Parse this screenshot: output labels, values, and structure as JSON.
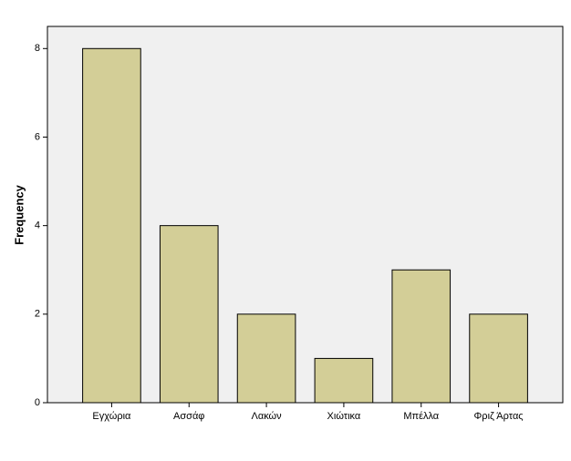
{
  "chart_data": {
    "type": "bar",
    "y_label": "Frequency",
    "categories": [
      "Εγχώρια",
      "Ασσάφ",
      "Λακών",
      "Χιώτικα",
      "Μπέλλα",
      "Φριζ Άρτας"
    ],
    "values": [
      8,
      4,
      2,
      1,
      3,
      2
    ],
    "color": "#d3ce97",
    "ylim": [
      0,
      8.5
    ],
    "yticks": [
      0,
      2,
      4,
      6,
      8
    ]
  }
}
